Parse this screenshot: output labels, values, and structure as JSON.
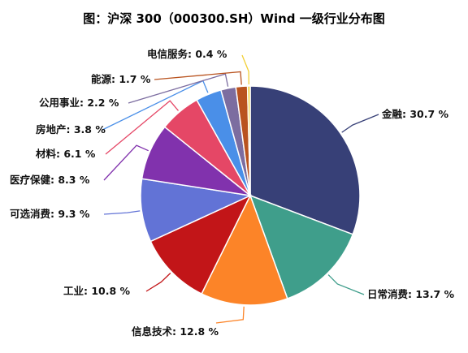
{
  "chart_data": {
    "type": "pie",
    "title": "图：沪深 300（000300.SH）Wind 一级行业分布图",
    "slices": [
      {
        "name": "金融",
        "value": 30.7,
        "text": "金融: 30.7 %",
        "color": "#374077"
      },
      {
        "name": "日常消费",
        "value": 13.7,
        "text": "日常消费: 13.7 %",
        "color": "#3f9e8b"
      },
      {
        "name": "信息技术",
        "value": 12.8,
        "text": "信息技术: 12.8 %",
        "color": "#fc8428"
      },
      {
        "name": "工业",
        "value": 10.8,
        "text": "工业: 10.8 %",
        "color": "#c21518"
      },
      {
        "name": "可选消费",
        "value": 9.3,
        "text": "可选消费: 9.3 %",
        "color": "#6273d6"
      },
      {
        "name": "医疗保健",
        "value": 8.3,
        "text": "医疗保健: 8.3 %",
        "color": "#8132ad"
      },
      {
        "name": "材料",
        "value": 6.1,
        "text": "材料: 6.1 %",
        "color": "#e54766"
      },
      {
        "name": "房地产",
        "value": 3.8,
        "text": "房地产: 3.8 %",
        "color": "#4a8fe8"
      },
      {
        "name": "公用事业",
        "value": 2.2,
        "text": "公用事业: 2.2 %",
        "color": "#7c6da0"
      },
      {
        "name": "能源",
        "value": 1.7,
        "text": "能源: 1.7 %",
        "color": "#b9531f"
      },
      {
        "name": "电信服务",
        "value": 0.4,
        "text": "电信服务: 0.4 %",
        "color": "#f2cf34"
      }
    ],
    "start": "12 o'clock",
    "direction": "clockwise",
    "labels": "outside with leader lines"
  }
}
